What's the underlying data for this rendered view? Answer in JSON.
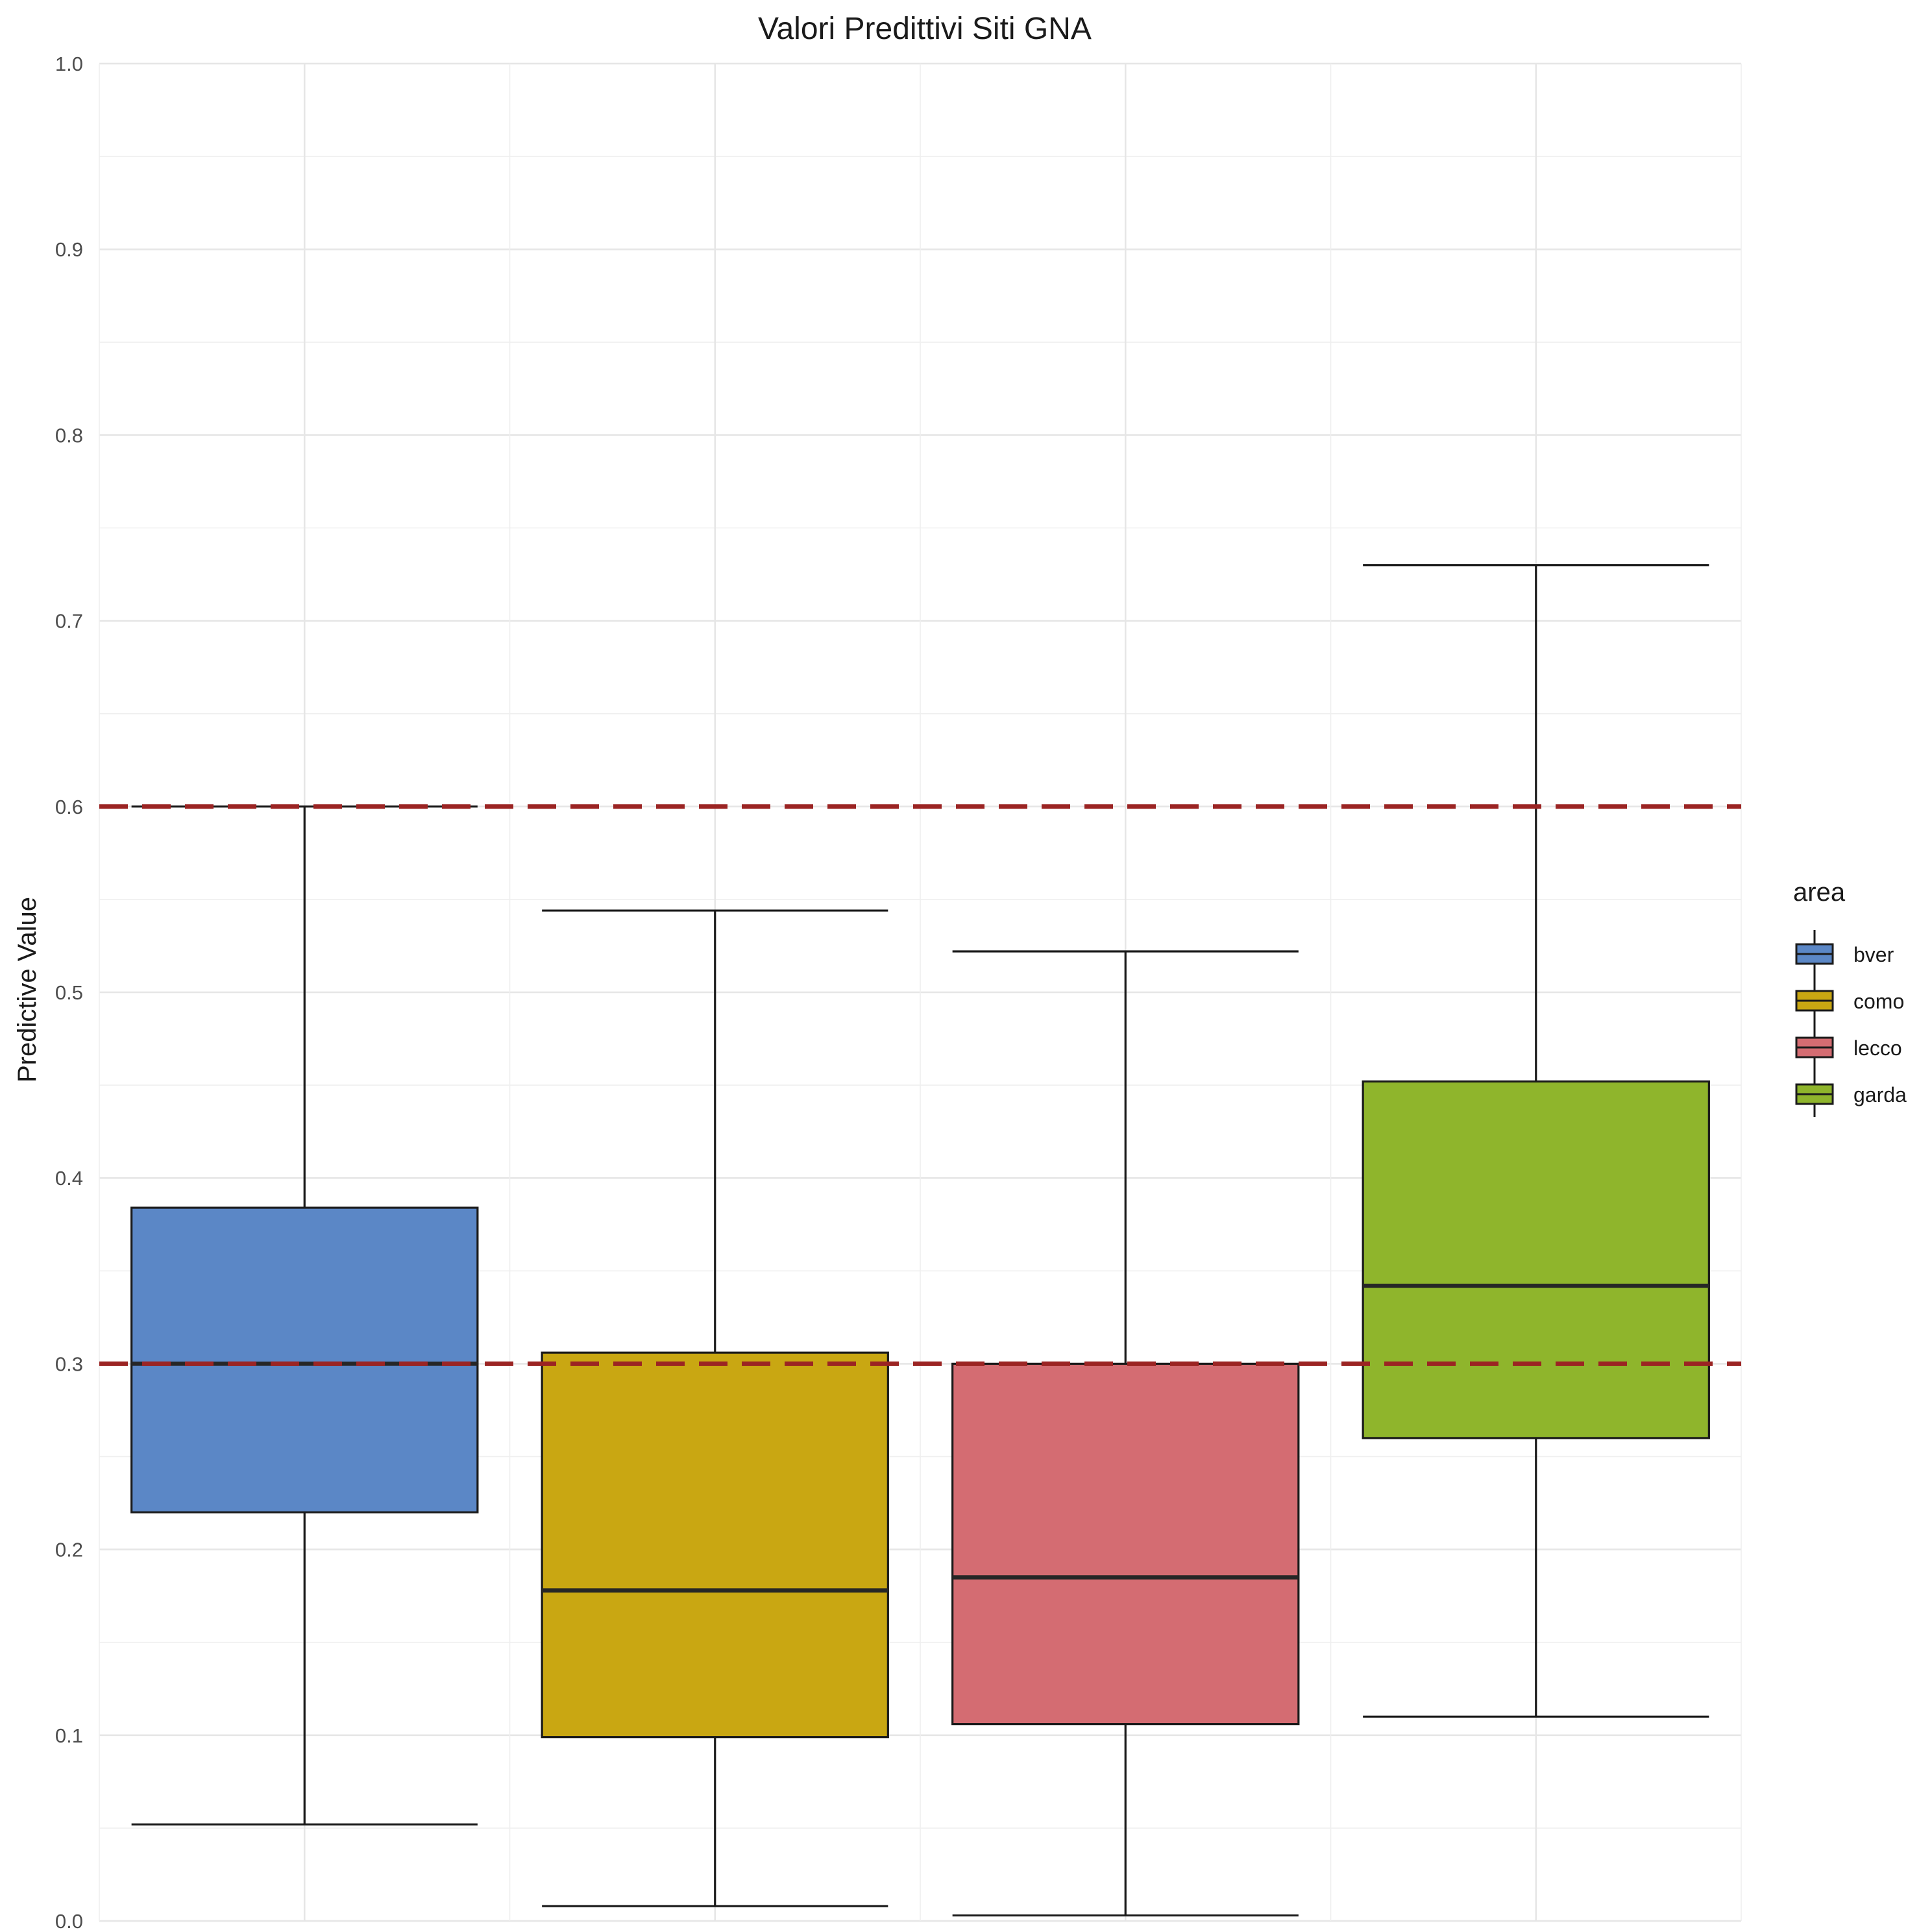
{
  "chart_data": {
    "type": "boxplot",
    "title": "Valori Predittivi Siti GNA",
    "xlabel": "",
    "ylabel": "Predictive Value",
    "ylim": [
      0,
      1.0
    ],
    "yticks": [
      "0.0",
      "0.1",
      "0.2",
      "0.3",
      "0.4",
      "0.5",
      "0.6",
      "0.7",
      "0.8",
      "0.9",
      "1.0"
    ],
    "grid": true,
    "legend": {
      "title": "area",
      "position": "right"
    },
    "categories": [
      "bver",
      "como",
      "lecco",
      "garda"
    ],
    "boxes": [
      {
        "name": "bver",
        "color": "#5b87c6",
        "whisker_low": 0.052,
        "q1": 0.22,
        "median": 0.3,
        "q3": 0.384,
        "whisker_high": 0.6
      },
      {
        "name": "como",
        "color": "#c9a712",
        "whisker_low": 0.008,
        "q1": 0.099,
        "median": 0.178,
        "q3": 0.306,
        "whisker_high": 0.544
      },
      {
        "name": "lecco",
        "color": "#d46c72",
        "whisker_low": 0.003,
        "q1": 0.106,
        "median": 0.185,
        "q3": 0.3,
        "whisker_high": 0.522
      },
      {
        "name": "garda",
        "color": "#8fb52c",
        "whisker_low": 0.11,
        "q1": 0.26,
        "median": 0.342,
        "q3": 0.452,
        "whisker_high": 0.73
      }
    ],
    "reference_lines": [
      {
        "y": 0.6,
        "style": "dashed",
        "color": "#9b2423"
      },
      {
        "y": 0.3,
        "style": "dashed",
        "color": "#9b2423"
      }
    ]
  }
}
